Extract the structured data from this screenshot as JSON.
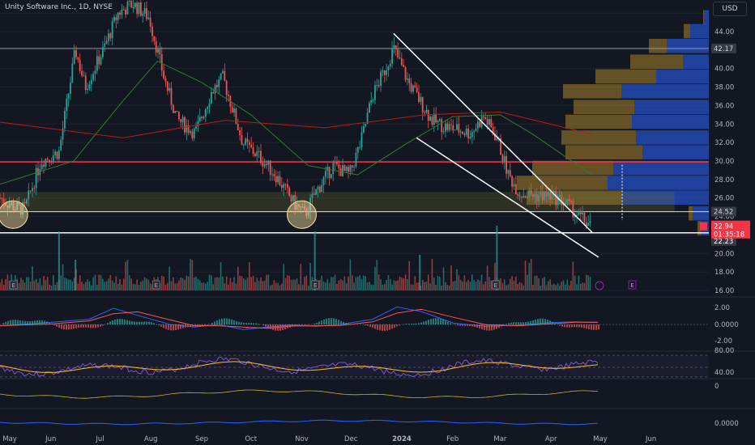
{
  "header": {
    "title": "Unity Software Inc., 1D, NYSE",
    "currency": "USD"
  },
  "chart_data": {
    "type": "candlestick",
    "symbol": "Unity Software Inc.",
    "timeframe": "1D",
    "exchange": "NYSE",
    "x_labels": [
      "May",
      "Jun",
      "Jul",
      "Aug",
      "Sep",
      "Oct",
      "Nov",
      "Dec",
      "2024",
      "Feb",
      "Mar",
      "Apr",
      "May",
      "Jun"
    ],
    "y_ticks": [
      "16.00",
      "18.00",
      "20.00",
      "22.00",
      "24.00",
      "26.00",
      "28.00",
      "30.00",
      "32.00",
      "34.00",
      "36.00",
      "38.00",
      "40.00",
      "42.00",
      "44.00"
    ],
    "price_labels": {
      "upper_line": "42.17",
      "lower_yellow_line": "24.52",
      "last_price": "22.94",
      "countdown": "01:35:18",
      "bottom_line": "22.23"
    },
    "ylim": [
      16,
      46
    ],
    "horizontal_lines": [
      42.17,
      29.9,
      24.52,
      22.23
    ],
    "zone": [
      24.5,
      26.6
    ],
    "channel": {
      "upper": [
        [
          "2023-12-27",
          43.8
        ],
        [
          "2024-04-26",
          22.3
        ]
      ],
      "lower": [
        [
          "2024-01-10",
          32.5
        ],
        [
          "2024-04-30",
          19.6
        ]
      ]
    },
    "ohlc_keypoints": [
      [
        "2023-05-01",
        26.0
      ],
      [
        "2023-05-10",
        25.0
      ],
      [
        "2023-05-16",
        24.8
      ],
      [
        "2023-05-26",
        30.0
      ],
      [
        "2023-06-06",
        31.0
      ],
      [
        "2023-06-16",
        42.0
      ],
      [
        "2023-06-22",
        38.0
      ],
      [
        "2023-07-03",
        42.0
      ],
      [
        "2023-07-12",
        46.0
      ],
      [
        "2023-07-21",
        47.0
      ],
      [
        "2023-07-31",
        45.5
      ],
      [
        "2023-08-09",
        39.0
      ],
      [
        "2023-08-17",
        34.5
      ],
      [
        "2023-08-28",
        33.0
      ],
      [
        "2023-09-07",
        37.5
      ],
      [
        "2023-09-14",
        39.0
      ],
      [
        "2023-09-26",
        32.0
      ],
      [
        "2023-10-06",
        30.5
      ],
      [
        "2023-10-16",
        28.5
      ],
      [
        "2023-10-27",
        25.5
      ],
      [
        "2023-11-03",
        24.2
      ],
      [
        "2023-11-09",
        26.5
      ],
      [
        "2023-11-20",
        29.5
      ],
      [
        "2023-11-30",
        28.5
      ],
      [
        "2023-12-07",
        32.0
      ],
      [
        "2023-12-14",
        37.0
      ],
      [
        "2023-12-22",
        40.0
      ],
      [
        "2023-12-27",
        42.2
      ],
      [
        "2024-01-05",
        38.5
      ],
      [
        "2024-01-12",
        36.5
      ],
      [
        "2024-01-19",
        34.5
      ],
      [
        "2024-01-26",
        33.8
      ],
      [
        "2024-02-02",
        33.5
      ],
      [
        "2024-02-12",
        33.0
      ],
      [
        "2024-02-20",
        34.8
      ],
      [
        "2024-02-28",
        32.5
      ],
      [
        "2024-03-06",
        28.5
      ],
      [
        "2024-03-13",
        26.5
      ],
      [
        "2024-03-22",
        26.3
      ],
      [
        "2024-04-01",
        26.2
      ],
      [
        "2024-04-10",
        25.5
      ],
      [
        "2024-04-18",
        24.0
      ],
      [
        "2024-04-26",
        22.94
      ]
    ],
    "sma_slow_keypoints": [
      [
        "2023-05-01",
        34.2
      ],
      [
        "2023-07-15",
        32.5
      ],
      [
        "2023-09-15",
        34.4
      ],
      [
        "2023-11-15",
        33.6
      ],
      [
        "2024-01-15",
        35.0
      ],
      [
        "2024-03-01",
        35.3
      ],
      [
        "2024-04-26",
        32.9
      ]
    ],
    "sma_fast_keypoints": [
      [
        "2023-05-01",
        27.5
      ],
      [
        "2023-06-15",
        30.0
      ],
      [
        "2023-07-15",
        36.5
      ],
      [
        "2023-08-05",
        40.8
      ],
      [
        "2023-09-01",
        38.5
      ],
      [
        "2023-10-01",
        35.0
      ],
      [
        "2023-11-05",
        29.5
      ],
      [
        "2023-12-05",
        28.5
      ],
      [
        "2024-01-05",
        32.0
      ],
      [
        "2024-02-01",
        34.8
      ],
      [
        "2024-03-01",
        35.0
      ],
      [
        "2024-03-20",
        33.0
      ],
      [
        "2024-04-26",
        28.5
      ]
    ],
    "volume_profile": {
      "rows": [
        {
          "price": 45.5,
          "up": 1,
          "down": 6
        },
        {
          "price": 44.0,
          "up": 8,
          "down": 23
        },
        {
          "price": 42.4,
          "up": 22,
          "down": 52
        },
        {
          "price": 40.7,
          "up": 65,
          "down": 32
        },
        {
          "price": 39.1,
          "up": 75,
          "down": 65
        },
        {
          "price": 37.5,
          "up": 72,
          "down": 108
        },
        {
          "price": 35.8,
          "up": 75,
          "down": 92
        },
        {
          "price": 34.2,
          "up": 82,
          "down": 95
        },
        {
          "price": 32.5,
          "up": 92,
          "down": 90
        },
        {
          "price": 30.9,
          "up": 95,
          "down": 82
        },
        {
          "price": 29.2,
          "up": 100,
          "down": 118
        },
        {
          "price": 27.6,
          "up": 112,
          "down": 125
        },
        {
          "price": 26.0,
          "up": 117,
          "down": 108
        },
        {
          "price": 24.3,
          "up": 5,
          "down": 20
        },
        {
          "price": 22.7,
          "up": 4,
          "down": 10
        }
      ],
      "up_color": "#2962ff",
      "down_color": "#fbc02d"
    },
    "macd": {
      "ticks": [
        "2.00",
        "0.0000",
        "-2.00"
      ]
    },
    "rsi": {
      "ticks": [
        "80.00",
        "40.00"
      ]
    },
    "osc1": {
      "ticks": [
        "0"
      ]
    },
    "osc2": {
      "ticks": [
        "0.0000"
      ]
    },
    "markers": {
      "earnings": "E",
      "dividend": "D"
    },
    "colors": {
      "up": "#26a69a",
      "down": "#ef5350",
      "background": "#131722",
      "grid": "#1e222d",
      "sma_slow": "#b71c1c",
      "sma_fast": "#2e7d32",
      "zone": "#787b2f",
      "yellow_line": "#e6e68c",
      "red_line": "#f23645",
      "channel": "#ffffff",
      "macd_line": "#2962ff",
      "signal_line": "#ff5252",
      "rsi": "#7e57c2",
      "rsi_ma": "#fbc02d",
      "price_badge": "#f23645",
      "circle": "#fbe3a0",
      "volume_spike": "#26a69a"
    }
  }
}
